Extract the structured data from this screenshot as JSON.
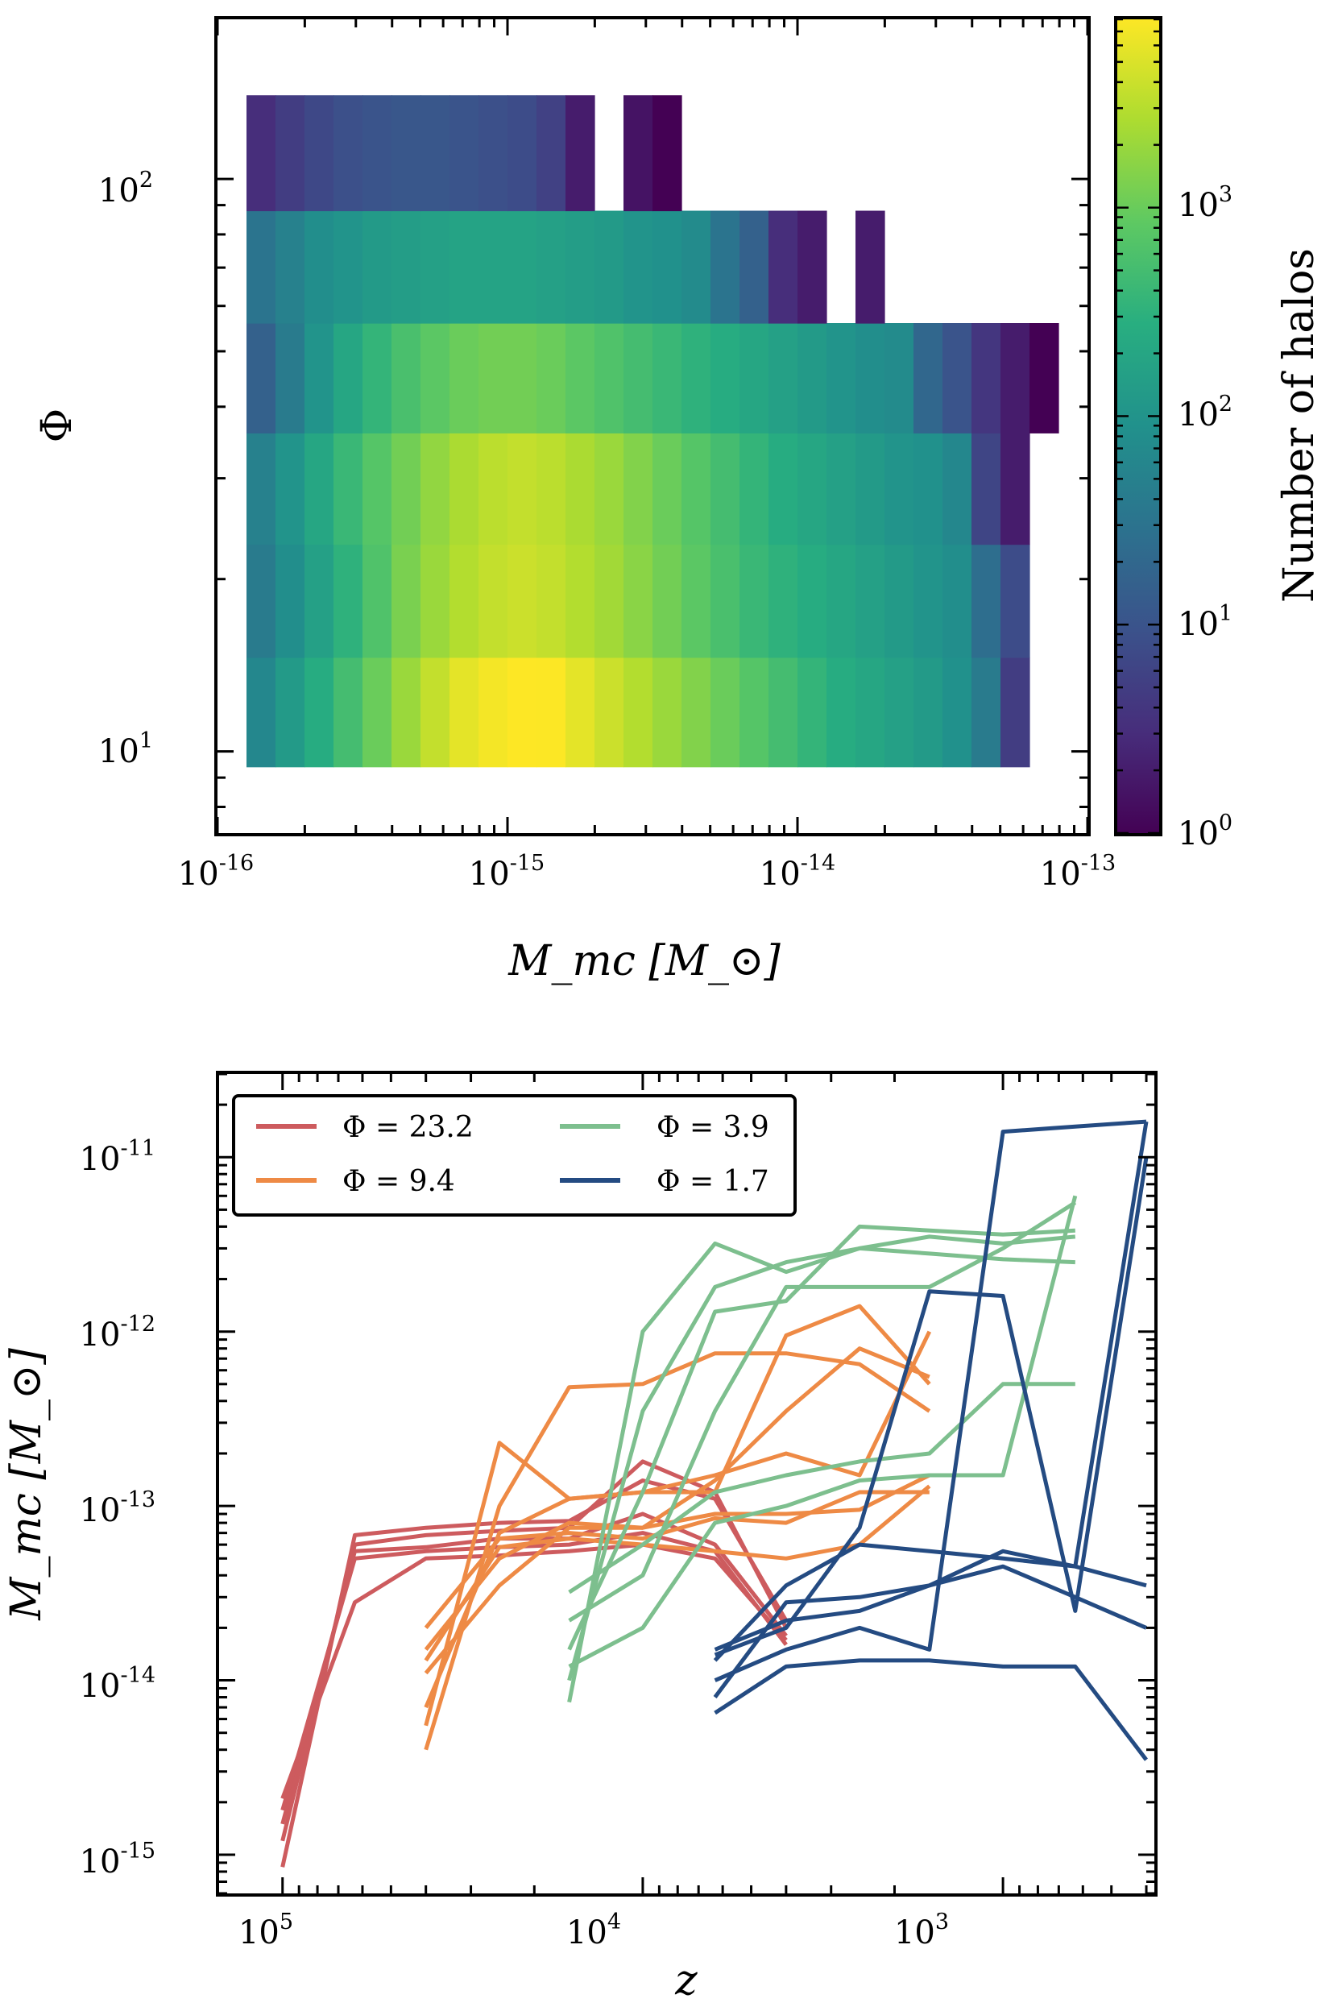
{
  "chart_data": [
    {
      "type": "heatmap",
      "title": "",
      "xlabel": "M_mc [M_⊙]",
      "ylabel": "Φ",
      "xscale": "log",
      "yscale": "log",
      "xlim": [
        1e-16,
        1e-13
      ],
      "ylim": [
        7.2,
        190
      ],
      "xtick_labels": [
        {
          "base": "10",
          "exp": "-16"
        },
        {
          "base": "10",
          "exp": "-15"
        },
        {
          "base": "10",
          "exp": "-14"
        },
        {
          "base": "10",
          "exp": "-13"
        }
      ],
      "ytick_labels": [
        {
          "base": "10",
          "exp": "1"
        },
        {
          "base": "10",
          "exp": "2"
        }
      ],
      "colorbar": {
        "label": "Number of halos",
        "scale": "log",
        "range": [
          1,
          8000
        ],
        "colormap": "viridis",
        "tick_labels": [
          {
            "base": "10",
            "exp": "0"
          },
          {
            "base": "10",
            "exp": "1"
          },
          {
            "base": "10",
            "exp": "2"
          },
          {
            "base": "10",
            "exp": "3"
          }
        ]
      },
      "x_edges_log10": [
        -15.9,
        -15.8,
        -15.7,
        -15.6,
        -15.5,
        -15.4,
        -15.3,
        -15.2,
        -15.1,
        -15.0,
        -14.9,
        -14.8,
        -14.7,
        -14.6,
        -14.5,
        -14.4,
        -14.3,
        -14.2,
        -14.1,
        -14.0,
        -13.9,
        -13.8,
        -13.7,
        -13.6,
        -13.5,
        -13.4,
        -13.3,
        -13.2,
        -13.1
      ],
      "rows": [
        {
          "phi_range": [
            9.4,
            14.6
          ],
          "log10_counts": [
            1.8,
            2.1,
            2.4,
            2.7,
            3.0,
            3.3,
            3.55,
            3.75,
            3.85,
            3.95,
            3.9,
            3.75,
            3.6,
            3.45,
            3.3,
            3.15,
            3.0,
            2.85,
            2.7,
            2.55,
            2.4,
            2.3,
            2.2,
            2.1,
            1.95,
            1.6,
            0.7,
            null
          ]
        },
        {
          "phi_range": [
            14.6,
            23.0
          ],
          "log10_counts": [
            1.6,
            1.9,
            2.2,
            2.5,
            2.8,
            3.1,
            3.3,
            3.45,
            3.55,
            3.6,
            3.55,
            3.45,
            3.35,
            3.2,
            3.05,
            2.9,
            2.75,
            2.6,
            2.5,
            2.4,
            2.3,
            2.2,
            2.1,
            2.0,
            1.9,
            1.4,
            0.9,
            null
          ]
        },
        {
          "phi_range": [
            23.0,
            36.0
          ],
          "log10_counts": [
            1.7,
            2.0,
            2.3,
            2.6,
            2.85,
            3.05,
            3.25,
            3.4,
            3.5,
            3.55,
            3.5,
            3.4,
            3.3,
            3.15,
            3.0,
            2.85,
            2.7,
            2.55,
            2.4,
            2.3,
            2.2,
            2.1,
            2.0,
            1.95,
            1.8,
            0.8,
            0.3,
            null
          ]
        },
        {
          "phi_range": [
            36.0,
            56.0
          ],
          "log10_counts": [
            1.2,
            1.6,
            2.0,
            2.3,
            2.55,
            2.75,
            2.9,
            3.0,
            3.05,
            3.05,
            3.0,
            2.9,
            2.8,
            2.7,
            2.6,
            2.5,
            2.4,
            2.3,
            2.2,
            2.1,
            2.0,
            1.9,
            1.85,
            1.3,
            1.0,
            0.6,
            0.3,
            0.0
          ]
        },
        {
          "phi_range": [
            56.0,
            88.0
          ],
          "log10_counts": [
            1.5,
            1.7,
            1.9,
            2.0,
            2.1,
            2.15,
            2.2,
            2.25,
            2.25,
            2.25,
            2.2,
            2.15,
            2.1,
            2.0,
            1.95,
            1.85,
            1.5,
            1.2,
            0.5,
            0.3,
            null,
            0.3,
            null,
            null,
            null,
            null,
            null,
            null
          ]
        },
        {
          "phi_range": [
            88.0,
            140.0
          ],
          "log10_counts": [
            0.5,
            0.7,
            0.85,
            0.95,
            1.0,
            1.05,
            1.05,
            1.0,
            0.95,
            0.9,
            0.75,
            0.3,
            null,
            0.2,
            0.0,
            null,
            null,
            null,
            null,
            null,
            null,
            null,
            null,
            null,
            null,
            null,
            null,
            null
          ]
        }
      ]
    },
    {
      "type": "line",
      "title": "",
      "xlabel": "z",
      "ylabel": "M_mc [M_⊙]",
      "xscale": "log",
      "x_inverted": true,
      "yscale": "log",
      "xlim": [
        150000,
        380
      ],
      "ylim": [
        6e-16,
        3e-11
      ],
      "xtick_labels": [
        {
          "base": "10",
          "exp": "5"
        },
        {
          "base": "10",
          "exp": "4"
        },
        {
          "base": "10",
          "exp": "3"
        }
      ],
      "ytick_labels": [
        {
          "base": "10",
          "exp": "-11"
        },
        {
          "base": "10",
          "exp": "-12"
        },
        {
          "base": "10",
          "exp": "-13"
        },
        {
          "base": "10",
          "exp": "-14"
        },
        {
          "base": "10",
          "exp": "-15"
        }
      ],
      "legend_position": "top-left",
      "series": [
        {
          "name": "Φ = 23.2",
          "legend_label": "Φ = 23.2",
          "color": "#cd5b5e",
          "lines": [
            {
              "z": [
                100000,
                63000,
                40000,
                25000,
                16000,
                10000,
                6300,
                4000
              ],
              "m": [
                8.5e-16,
                6.8e-14,
                7.5e-14,
                8e-14,
                8.2e-14,
                1.4e-13,
                1.1e-13,
                2.2e-14
              ]
            },
            {
              "z": [
                100000,
                63000,
                40000,
                25000,
                16000,
                10000,
                6300,
                4000
              ],
              "m": [
                1.2e-15,
                6e-14,
                6.8e-14,
                7.2e-14,
                7.5e-14,
                1.8e-13,
                1.2e-13,
                2e-14
              ]
            },
            {
              "z": [
                100000,
                63000,
                40000,
                25000,
                16000,
                10000,
                6300,
                4000
              ],
              "m": [
                1.5e-15,
                5.5e-14,
                5.8e-14,
                6.5e-14,
                6.5e-14,
                9e-14,
                6e-14,
                1.8e-14
              ]
            },
            {
              "z": [
                100000,
                63000,
                40000,
                25000,
                16000,
                10000,
                6300,
                4000
              ],
              "m": [
                1.8e-15,
                5e-14,
                5.5e-14,
                5.8e-14,
                6e-14,
                7e-14,
                5.5e-14,
                1.6e-14
              ]
            },
            {
              "z": [
                100000,
                63000,
                40000,
                25000,
                16000,
                10000,
                6300,
                4000
              ],
              "m": [
                2.1e-15,
                2.8e-14,
                5e-14,
                5.2e-14,
                5.5e-14,
                6e-14,
                5e-14,
                1.7e-14
              ]
            }
          ]
        },
        {
          "name": "Φ = 9.4",
          "legend_label": "Φ = 9.4",
          "color": "#ee8a45",
          "lines": [
            {
              "z": [
                40000,
                25000,
                16000,
                10000,
                6300,
                4000,
                2500,
                1600
              ],
              "m": [
                4e-15,
                1e-13,
                4.8e-13,
                5e-13,
                7.5e-13,
                7.5e-13,
                6.5e-13,
                3.5e-13
              ]
            },
            {
              "z": [
                40000,
                25000,
                16000,
                10000,
                6300,
                4000,
                2500,
                1600
              ],
              "m": [
                5.5e-15,
                2.3e-13,
                1.1e-13,
                1.2e-13,
                1.5e-13,
                2e-13,
                1.5e-13,
                1e-12
              ]
            },
            {
              "z": [
                40000,
                25000,
                16000,
                10000,
                6300,
                4000,
                2500,
                1600
              ],
              "m": [
                7e-15,
                7e-14,
                1.1e-13,
                1.2e-13,
                1.2e-13,
                9.5e-13,
                1.4e-12,
                5e-13
              ]
            },
            {
              "z": [
                40000,
                25000,
                16000,
                10000,
                6300,
                4000,
                2500,
                1600
              ],
              "m": [
                1.1e-14,
                3.5e-14,
                7.5e-14,
                7.5e-14,
                1.4e-13,
                3.5e-13,
                8e-13,
                5.5e-13
              ]
            },
            {
              "z": [
                40000,
                25000,
                16000,
                10000,
                6300,
                4000,
                2500,
                1600
              ],
              "m": [
                1.5e-14,
                5e-14,
                8e-14,
                7.5e-14,
                9e-14,
                9e-14,
                9.5e-14,
                1.5e-13
              ]
            },
            {
              "z": [
                40000,
                25000,
                16000,
                10000,
                6300,
                4000,
                2500,
                1600
              ],
              "m": [
                2e-14,
                6.5e-14,
                7e-14,
                6.5e-14,
                8.5e-14,
                8e-14,
                1.2e-13,
                1.2e-13
              ]
            },
            {
              "z": [
                40000,
                25000,
                16000,
                10000,
                6300,
                4000,
                2500,
                1600
              ],
              "m": [
                1.3e-14,
                5.8e-14,
                6.5e-14,
                6e-14,
                5.5e-14,
                5e-14,
                6e-14,
                1.3e-13
              ]
            }
          ]
        },
        {
          "name": "Φ = 3.9",
          "legend_label": "Φ = 3.9",
          "color": "#7dbf8e",
          "lines": [
            {
              "z": [
                16000,
                10000,
                6300,
                4000,
                2500,
                1600,
                1000,
                630
              ],
              "m": [
                7.5e-15,
                1e-12,
                3.2e-12,
                2.2e-12,
                3e-12,
                3.5e-12,
                3.2e-12,
                3.5e-12
              ]
            },
            {
              "z": [
                16000,
                10000,
                6300,
                4000,
                2500,
                1600,
                1000,
                630
              ],
              "m": [
                1e-14,
                3.5e-13,
                1.8e-12,
                2.5e-12,
                3e-12,
                2.8e-12,
                2.6e-12,
                2.5e-12
              ]
            },
            {
              "z": [
                16000,
                10000,
                6300,
                4000,
                2500,
                1600,
                1000,
                630
              ],
              "m": [
                1.5e-14,
                1.2e-13,
                1.3e-12,
                1.5e-12,
                4e-12,
                3.8e-12,
                3.6e-12,
                3.8e-12
              ]
            },
            {
              "z": [
                16000,
                10000,
                6300,
                4000,
                2500,
                1600,
                1000,
                630
              ],
              "m": [
                2.2e-14,
                4e-14,
                3.5e-13,
                1.8e-12,
                1.8e-12,
                1.8e-12,
                3e-12,
                5.5e-12
              ]
            },
            {
              "z": [
                16000,
                10000,
                6300,
                4000,
                2500,
                1600,
                1000,
                630
              ],
              "m": [
                3.2e-14,
                6e-14,
                1.2e-13,
                1.5e-13,
                1.8e-13,
                2e-13,
                5e-13,
                5e-13
              ]
            },
            {
              "z": [
                16000,
                10000,
                6300,
                4000,
                2500,
                1600,
                1000,
                630
              ],
              "m": [
                1.2e-14,
                2e-14,
                8e-14,
                1e-13,
                1.4e-13,
                1.5e-13,
                1.5e-13,
                6e-12
              ]
            }
          ]
        },
        {
          "name": "Φ = 1.7",
          "legend_label": "Φ = 1.7",
          "color": "#244b82",
          "lines": [
            {
              "z": [
                6300,
                4000,
                2500,
                1600,
                1000,
                630,
                400
              ],
              "m": [
                8e-15,
                2.8e-14,
                3e-14,
                3.5e-14,
                5.5e-14,
                4.5e-14,
                1.6e-11
              ]
            },
            {
              "z": [
                6300,
                4000,
                2500,
                1600,
                1000,
                630,
                400
              ],
              "m": [
                1e-14,
                1.5e-14,
                2e-14,
                1.5e-14,
                1.4e-11,
                1.5e-11,
                1.6e-11
              ]
            },
            {
              "z": [
                6300,
                4000,
                2500,
                1600,
                1000,
                630,
                400
              ],
              "m": [
                1.3e-14,
                3.5e-14,
                6e-14,
                5.5e-14,
                5e-14,
                4.5e-14,
                3.5e-14
              ]
            },
            {
              "z": [
                6300,
                4000,
                2500,
                1600,
                1000,
                630,
                400
              ],
              "m": [
                1.5e-14,
                2.2e-14,
                2.5e-14,
                3.5e-14,
                4.5e-14,
                3e-14,
                2e-14
              ]
            },
            {
              "z": [
                6300,
                4000,
                2500,
                1600,
                1000,
                630,
                400
              ],
              "m": [
                6.5e-15,
                1.2e-14,
                1.3e-14,
                1.3e-14,
                1.2e-14,
                1.2e-14,
                3.5e-15
              ]
            },
            {
              "z": [
                6300,
                4000,
                2500,
                1600,
                1000,
                630,
                400
              ],
              "m": [
                1.4e-14,
                2e-14,
                7.5e-14,
                1.7e-12,
                1.6e-12,
                2.5e-14,
                1e-11
              ]
            }
          ]
        }
      ]
    }
  ]
}
